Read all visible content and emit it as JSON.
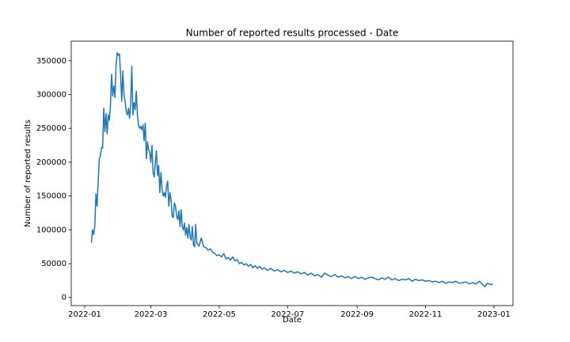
{
  "chart_data": {
    "type": "line",
    "title": "Number of reported results processed - Date",
    "x_label": "Date",
    "y_label": "Number of reported results",
    "color": "#1f77b4",
    "x": [
      6,
      7,
      8,
      9,
      10,
      11,
      12,
      13,
      14,
      15,
      16,
      17,
      18,
      19,
      20,
      21,
      22,
      23,
      24,
      25,
      26,
      27,
      28,
      29,
      30,
      31,
      32,
      33,
      34,
      35,
      36,
      37,
      38,
      39,
      40,
      41,
      42,
      43,
      44,
      45,
      46,
      47,
      48,
      49,
      50,
      51,
      52,
      53,
      54,
      55,
      56,
      57,
      58,
      59,
      60,
      61,
      62,
      63,
      64,
      65,
      66,
      67,
      68,
      69,
      70,
      71,
      72,
      73,
      74,
      75,
      76,
      77,
      78,
      79,
      80,
      81,
      82,
      83,
      84,
      85,
      86,
      87,
      88,
      89,
      90,
      91,
      92,
      93,
      94,
      95,
      96,
      97,
      98,
      99,
      100,
      102,
      104,
      106,
      108,
      110,
      112,
      114,
      116,
      118,
      120,
      122,
      124,
      126,
      128,
      130,
      132,
      134,
      136,
      138,
      140,
      142,
      144,
      146,
      148,
      150,
      152,
      154,
      156,
      158,
      160,
      163,
      166,
      169,
      172,
      175,
      178,
      181,
      184,
      187,
      190,
      193,
      196,
      199,
      202,
      205,
      208,
      211,
      214,
      217,
      220,
      223,
      226,
      229,
      232,
      235,
      238,
      241,
      244,
      247,
      250,
      253,
      256,
      259,
      262,
      265,
      268,
      271,
      274,
      277,
      280,
      283,
      286,
      289,
      292,
      295,
      298,
      301,
      304,
      307,
      310,
      313,
      316,
      319,
      322,
      325,
      328,
      331,
      334,
      337,
      340,
      343,
      346,
      349,
      352,
      355,
      357,
      359,
      362,
      364
    ],
    "values": [
      81000,
      100000,
      93000,
      105000,
      153000,
      135000,
      170000,
      205000,
      210000,
      222000,
      221000,
      280000,
      245000,
      272000,
      242000,
      270000,
      262000,
      285000,
      330000,
      298000,
      313000,
      296000,
      345000,
      362000,
      358000,
      360000,
      330000,
      290000,
      335000,
      300000,
      290000,
      275000,
      270000,
      280000,
      265000,
      285000,
      342000,
      270000,
      288000,
      278000,
      305000,
      270000,
      255000,
      250000,
      253000,
      248000,
      255000,
      232000,
      258000,
      205000,
      230000,
      218000,
      215000,
      200000,
      225000,
      185000,
      178000,
      200000,
      217000,
      180000,
      195000,
      155000,
      185000,
      160000,
      150000,
      155000,
      148000,
      165000,
      172000,
      135000,
      155000,
      145000,
      120000,
      118000,
      140000,
      135000,
      120000,
      115000,
      128000,
      105000,
      130000,
      105000,
      100000,
      110000,
      92000,
      103000,
      88000,
      108000,
      90000,
      85000,
      105000,
      78000,
      75000,
      108000,
      80000,
      76000,
      88000,
      75000,
      74000,
      70000,
      72000,
      67000,
      65000,
      62000,
      63000,
      60000,
      65000,
      57000,
      59000,
      55000,
      60000,
      54000,
      56000,
      50000,
      52000,
      48000,
      50000,
      46000,
      49000,
      44000,
      47000,
      43000,
      46000,
      42000,
      44000,
      40000,
      43000,
      39000,
      41000,
      38000,
      40000,
      37000,
      39000,
      36000,
      38000,
      35000,
      37000,
      33000,
      36000,
      32000,
      34000,
      30000,
      36000,
      33000,
      31000,
      34000,
      30000,
      32000,
      29000,
      31000,
      28000,
      31000,
      28000,
      30000,
      27000,
      29000,
      30000,
      28000,
      26000,
      29000,
      27000,
      30000,
      26000,
      28000,
      25000,
      27000,
      26000,
      28000,
      24000,
      27000,
      25000,
      26000,
      24000,
      25000,
      23000,
      24000,
      22000,
      24000,
      21000,
      23000,
      22000,
      24000,
      21000,
      22000,
      23000,
      20000,
      22000,
      20000,
      24000,
      19000,
      16000,
      21000,
      19000,
      20000
    ],
    "xlim": [
      -12,
      382
    ],
    "xticks": [
      {
        "value": 0,
        "label": "2022-01"
      },
      {
        "value": 59,
        "label": "2022-03"
      },
      {
        "value": 120,
        "label": "2022-05"
      },
      {
        "value": 181,
        "label": "2022-07"
      },
      {
        "value": 243,
        "label": "2022-09"
      },
      {
        "value": 304,
        "label": "2022-11"
      },
      {
        "value": 365,
        "label": "2023-01"
      }
    ],
    "ylim": [
      -12000,
      379000
    ],
    "yticks": [
      0,
      50000,
      100000,
      150000,
      200000,
      250000,
      300000,
      350000
    ]
  }
}
